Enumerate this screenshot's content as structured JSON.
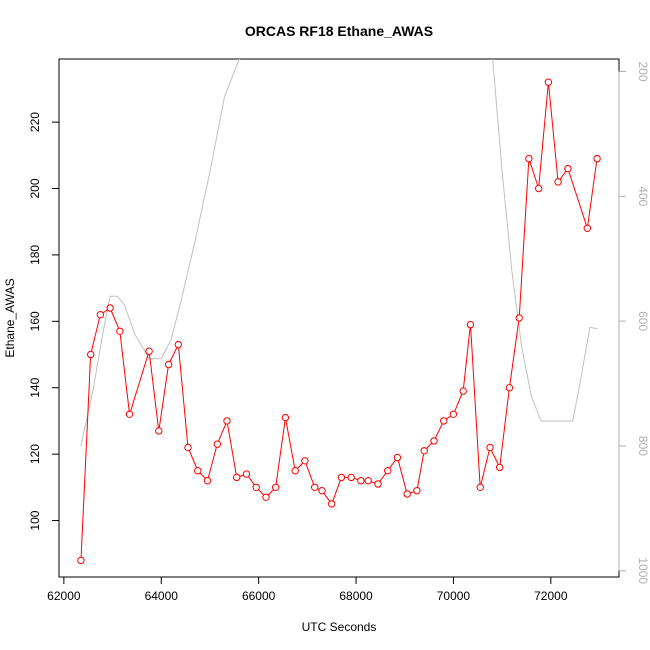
{
  "chart_data": {
    "type": "line",
    "title": "ORCAS RF18 Ethane_AWAS",
    "xlabel": "UTC Seconds",
    "ylabel": "Ethane_AWAS",
    "xlim": [
      61900,
      73400
    ],
    "ylim": [
      83,
      239
    ],
    "x_ticks": [
      62000,
      64000,
      66000,
      68000,
      70000,
      72000
    ],
    "y_ticks": [
      100,
      120,
      140,
      160,
      180,
      200,
      220
    ],
    "secondary_axis": {
      "position": "right",
      "reversed": true,
      "ylim": [
        1010,
        180
      ],
      "ticks": [
        200,
        400,
        600,
        800,
        1000
      ],
      "color": "#b0b0b0"
    },
    "series": [
      {
        "color": "#ff0000",
        "marker": "open-circle",
        "x": [
          62350,
          62550,
          62750,
          62950,
          63150,
          63350,
          63750,
          63950,
          64150,
          64350,
          64550,
          64750,
          64950,
          65150,
          65350,
          65550,
          65750,
          65950,
          66150,
          66350,
          66550,
          66750,
          66950,
          67150,
          67300,
          67500,
          67700,
          67900,
          68100,
          68250,
          68450,
          68650,
          68850,
          69050,
          69250,
          69400,
          69600,
          69800,
          70000,
          70200,
          70350,
          70550,
          70750,
          70950,
          71150,
          71350,
          71550,
          71750,
          71950,
          72150,
          72350,
          72750,
          72950
        ],
        "y": [
          88,
          150,
          162,
          164,
          157,
          132,
          151,
          127,
          147,
          153,
          122,
          115,
          112,
          123,
          130,
          113,
          114,
          110,
          107,
          110,
          131,
          115,
          118,
          110,
          109,
          105,
          113,
          113,
          112,
          112,
          111,
          115,
          119,
          108,
          109,
          121,
          124,
          130,
          132,
          139,
          159,
          110,
          122,
          116,
          140,
          161,
          209,
          200,
          232,
          202,
          206,
          188,
          209
        ]
      },
      {
        "color": "#c0c0c0",
        "marker": "none",
        "axis": "secondary",
        "x": [
          62350,
          62600,
          62800,
          62950,
          63100,
          63250,
          63450,
          63750,
          64000,
          64200,
          64400,
          64700,
          65000,
          65300,
          65600,
          65850,
          66000,
          66300,
          66600,
          66800,
          67000,
          67500,
          68000,
          68500,
          68800,
          69000,
          69500,
          70000,
          70400,
          70600,
          70800,
          71000,
          71200,
          71400,
          71600,
          71800,
          72000,
          72200,
          72450,
          72600,
          72800,
          72950
        ],
        "y": [
          800,
          710,
          620,
          560,
          560,
          575,
          620,
          660,
          660,
          630,
          570,
          470,
          360,
          240,
          180,
          170,
          170,
          170,
          178,
          178,
          170,
          170,
          170,
          170,
          178,
          170,
          170,
          170,
          170,
          170,
          175,
          360,
          520,
          640,
          720,
          760,
          760,
          760,
          760,
          700,
          610,
          612
        ]
      }
    ]
  }
}
